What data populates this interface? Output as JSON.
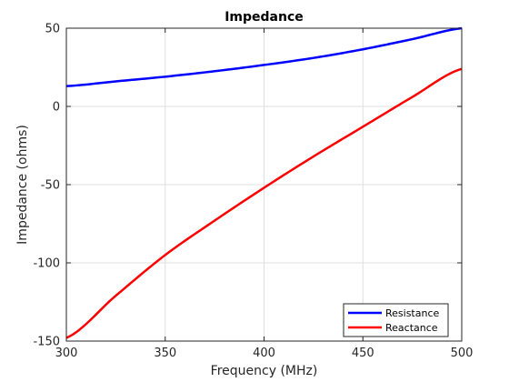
{
  "chart_data": {
    "type": "line",
    "title": "Impedance",
    "xlabel": "Frequency (MHz)",
    "ylabel": "Impedance (ohms)",
    "xlim": [
      300,
      500
    ],
    "ylim": [
      -150,
      50
    ],
    "xticks": [
      300,
      350,
      400,
      450,
      500
    ],
    "yticks": [
      -150,
      -100,
      -50,
      0,
      50
    ],
    "xtick_labels": [
      "300",
      "350",
      "400",
      "450",
      "500"
    ],
    "ytick_labels": [
      "-150",
      "-100",
      "-50",
      "0",
      "50"
    ],
    "grid": true,
    "legend_position": "bottom-right",
    "x": [
      300,
      325,
      350,
      375,
      400,
      425,
      450,
      475,
      500
    ],
    "series": [
      {
        "name": "Resistance",
        "color": "#0000ff",
        "values": [
          13,
          16,
          19,
          22.5,
          26.5,
          31,
          36.5,
          43,
          50
        ]
      },
      {
        "name": "Reactance",
        "color": "#ff0000",
        "values": [
          -148,
          -121,
          -95,
          -73,
          -52,
          -32,
          -13,
          6,
          24
        ]
      }
    ]
  }
}
